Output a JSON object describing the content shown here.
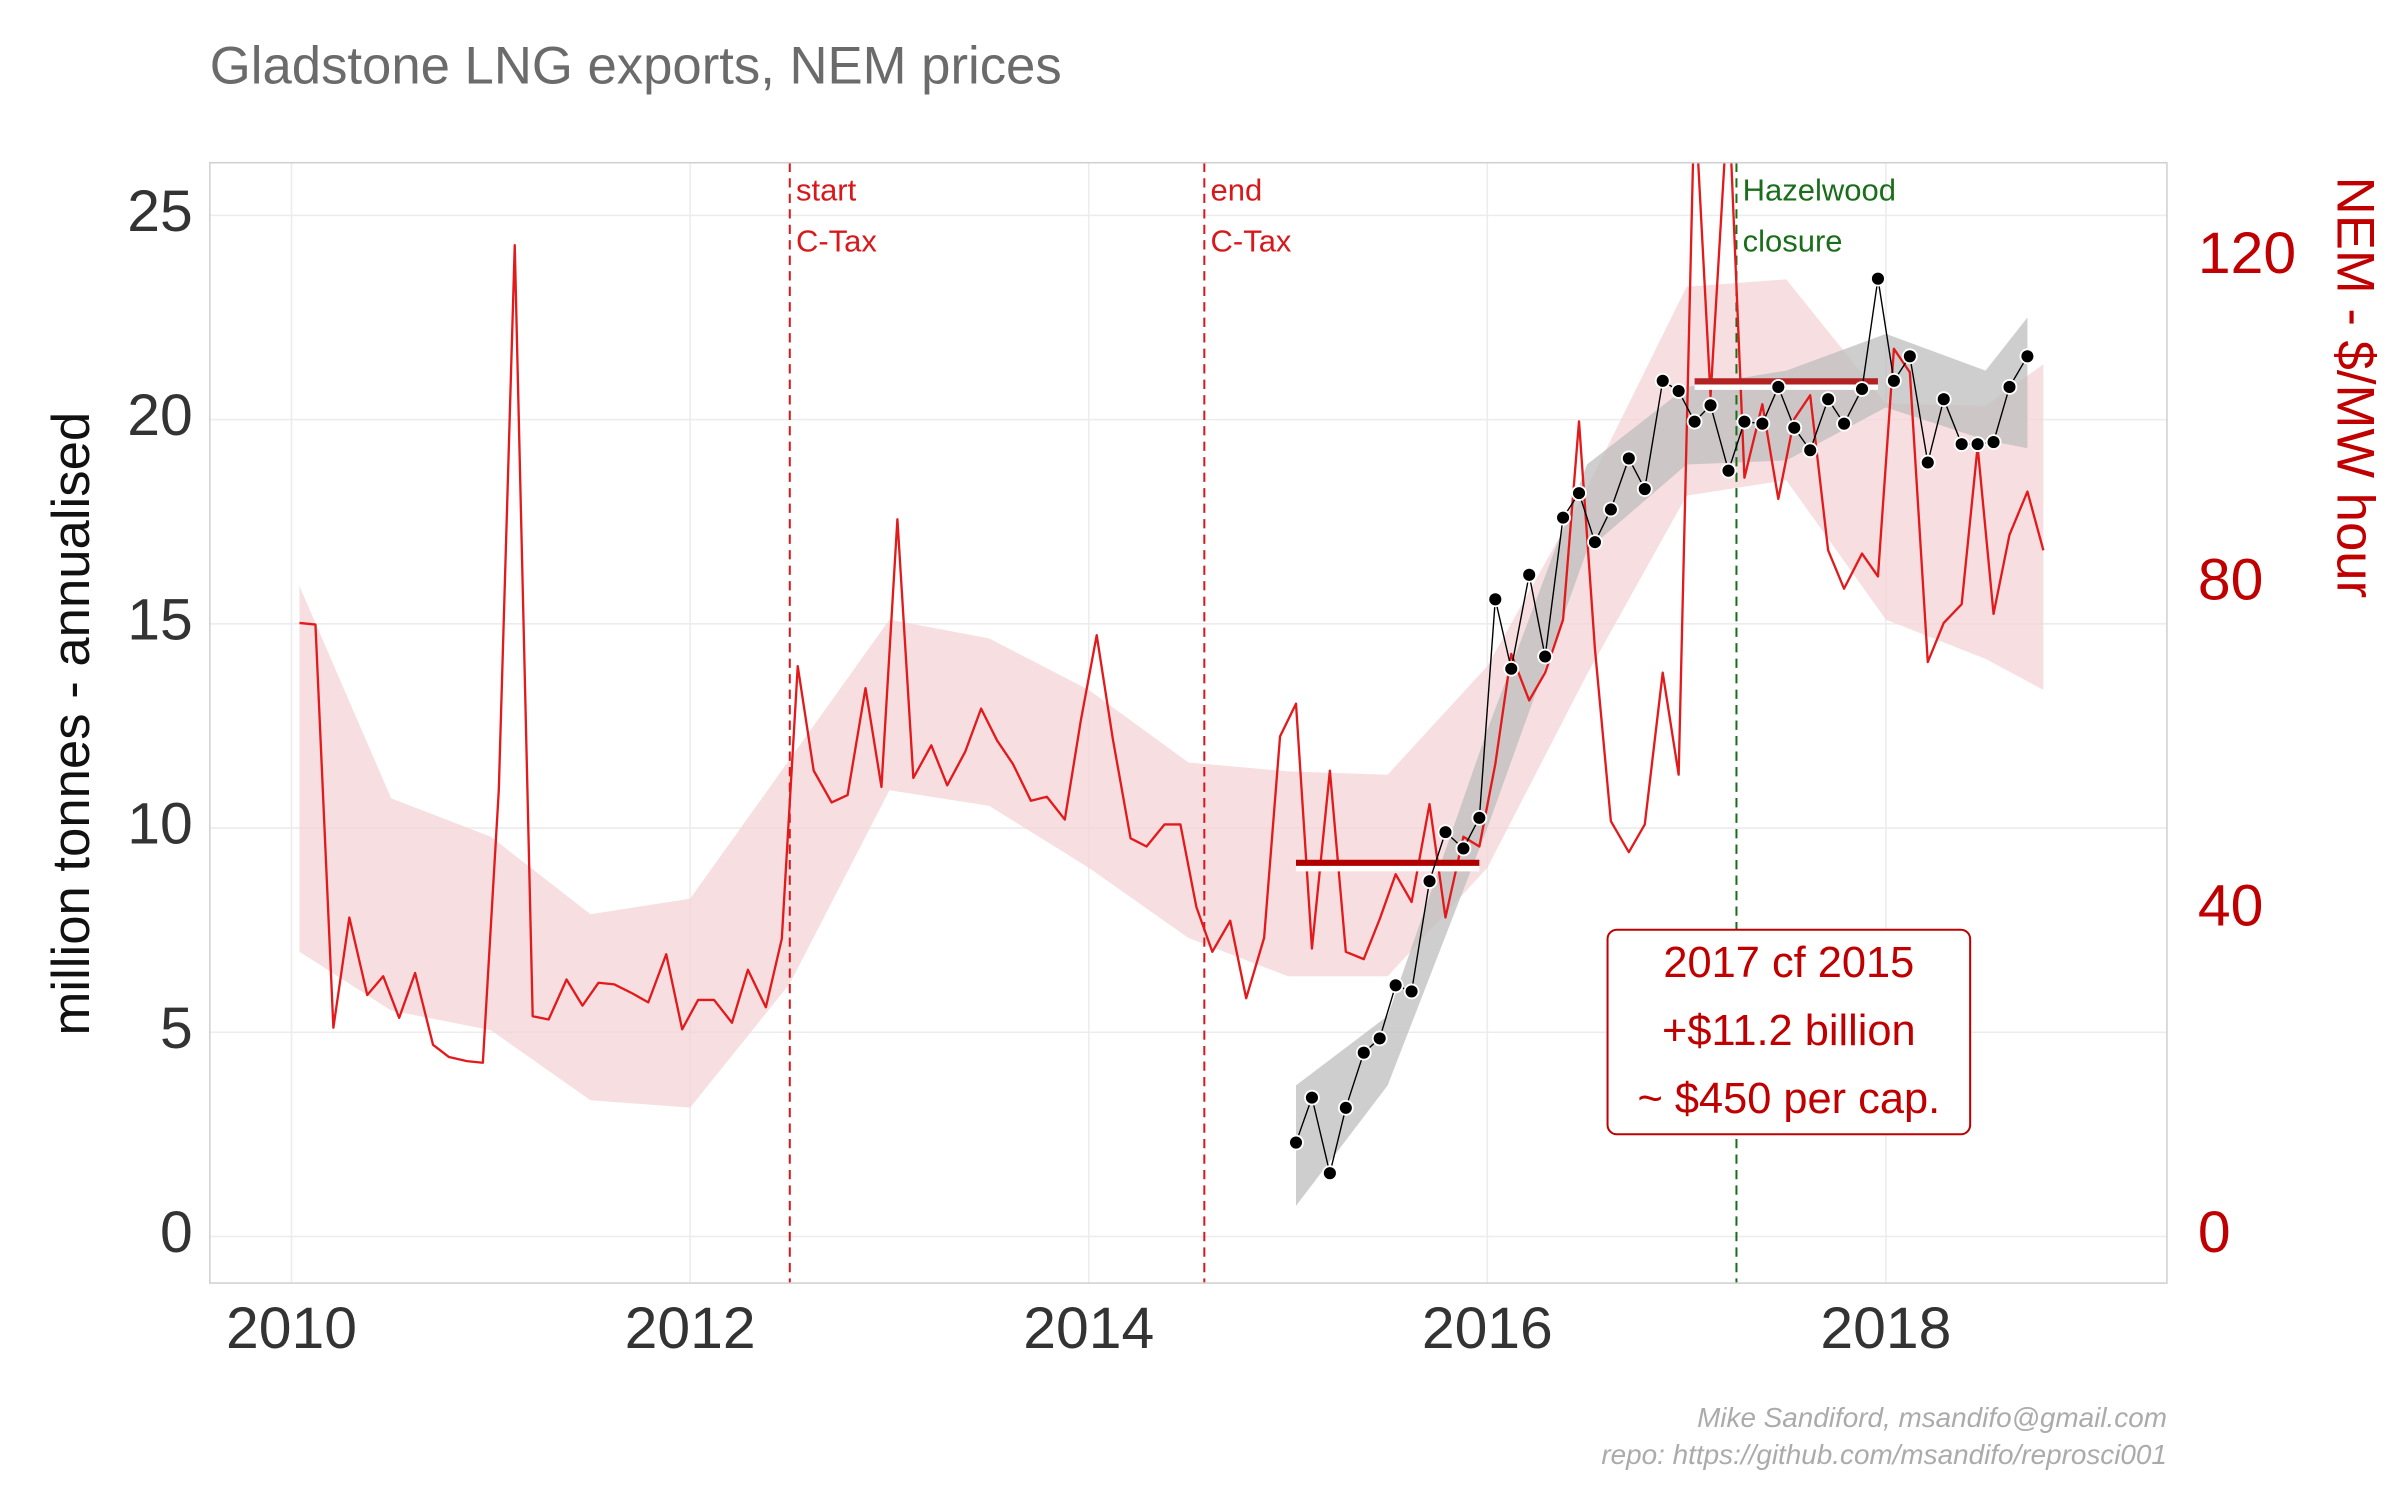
{
  "chart_data": {
    "type": "line",
    "title": "Gladstone LNG exports, NEM prices",
    "ylabel": "million tonnes - annualised",
    "y2label": "NEM - $/MW hour",
    "xlim": [
      2009.59,
      2019.41
    ],
    "xticks": [
      2010,
      2012,
      2014,
      2016,
      2018
    ],
    "ylim": [
      -1.14,
      26.29
    ],
    "yticks": [
      0,
      5,
      10,
      15,
      20,
      25
    ],
    "y2lim": [
      -5.7,
      131.6
    ],
    "y2ticks": [
      0,
      40,
      80,
      120
    ],
    "grid": true,
    "bands": [
      {
        "axis": "y2",
        "color": "#f4d3d6",
        "x": [
          2010.04,
          2010.5,
          2011,
          2011.5,
          2012,
          2012.5,
          2013,
          2013.5,
          2014,
          2014.5,
          2015,
          2015.5,
          2016,
          2016.5,
          2017,
          2017.5,
          2018,
          2018.5,
          2018.79
        ],
        "upper": [
          79.7,
          53.7,
          49,
          39.5,
          41.4,
          58.5,
          75.6,
          73.3,
          67,
          58.1,
          57,
          56.6,
          69.9,
          91.7,
          116.4,
          117.3,
          102.1,
          101.8,
          106.9
        ],
        "lower": [
          34.9,
          27.7,
          25.3,
          16.7,
          15.8,
          31,
          54.7,
          52.8,
          45.2,
          36.6,
          31.9,
          31.9,
          45.2,
          68.9,
          90.8,
          92.7,
          75.6,
          70.8,
          67
        ]
      },
      {
        "axis": "y",
        "color": "#bdbdbd",
        "x": [
          2015.04,
          2015.5,
          2016,
          2016.5,
          2017,
          2017.5,
          2018,
          2018.5,
          2018.71
        ],
        "upper": [
          3.7,
          5.4,
          12.4,
          18.9,
          20.8,
          21.2,
          22.1,
          21.2,
          22.5
        ],
        "lower": [
          0.75,
          3.7,
          10,
          16.8,
          18.9,
          19,
          20.3,
          19.5,
          19.3
        ]
      }
    ],
    "series": [
      {
        "axis": "y2",
        "color": "#e31a1c",
        "x": [
          2010.04,
          2010.12,
          2010.21,
          2010.29,
          2010.38,
          2010.46,
          2010.54,
          2010.62,
          2010.71,
          2010.79,
          2010.88,
          2010.96,
          2011.04,
          2011.12,
          2011.21,
          2011.29,
          2011.38,
          2011.46,
          2011.54,
          2011.62,
          2011.71,
          2011.79,
          2011.88,
          2011.96,
          2012.04,
          2012.12,
          2012.21,
          2012.29,
          2012.38,
          2012.46,
          2012.54,
          2012.62,
          2012.71,
          2012.79,
          2012.88,
          2012.96,
          2013.04,
          2013.12,
          2013.21,
          2013.29,
          2013.38,
          2013.46,
          2013.54,
          2013.62,
          2013.71,
          2013.79,
          2013.88,
          2013.96,
          2014.04,
          2014.12,
          2014.21,
          2014.29,
          2014.38,
          2014.46,
          2014.54,
          2014.62,
          2014.71,
          2014.79,
          2014.88,
          2014.96,
          2015.04,
          2015.12,
          2015.21,
          2015.29,
          2015.38,
          2015.46,
          2015.54,
          2015.62,
          2015.71,
          2015.79,
          2015.88,
          2015.96,
          2016.04,
          2016.12,
          2016.21,
          2016.29,
          2016.38,
          2016.46,
          2016.54,
          2016.62,
          2016.71,
          2016.79,
          2016.88,
          2016.96,
          2017.04,
          2017.12,
          2017.21,
          2017.29,
          2017.38,
          2017.46,
          2017.54,
          2017.62,
          2017.71,
          2017.79,
          2017.88,
          2017.96,
          2018.04,
          2018.12,
          2018.21,
          2018.29,
          2018.38,
          2018.46,
          2018.54,
          2018.62,
          2018.71,
          2018.79
        ],
        "values": [
          75.2,
          75,
          25.6,
          39.1,
          29.6,
          31.9,
          26.8,
          32.3,
          23.5,
          22,
          21.5,
          21.3,
          54.7,
          121.5,
          27,
          26.6,
          31.5,
          28.3,
          31.1,
          30.9,
          29.8,
          28.7,
          34.6,
          25.4,
          29,
          29,
          26.2,
          32.7,
          28.1,
          36.5,
          69.9,
          57.1,
          53.2,
          54.1,
          67.2,
          55.1,
          87.9,
          56.2,
          60.2,
          55.3,
          59.4,
          64.7,
          60.8,
          57.9,
          53.4,
          53.9,
          51.1,
          63.2,
          73.7,
          61.1,
          48.8,
          47.8,
          50.5,
          50.5,
          40.4,
          34.9,
          38.7,
          29.2,
          36.6,
          61.3,
          65.3,
          35.3,
          57.1,
          34.9,
          34,
          38.9,
          44.4,
          41,
          53,
          39.1,
          49,
          47.8,
          57.9,
          71.4,
          65.7,
          69.1,
          75.6,
          99.9,
          72,
          50.9,
          47.1,
          50.5,
          69.1,
          56.6,
          140,
          103,
          140,
          93,
          102,
          90.4,
          100.2,
          103.1,
          84.1,
          79.4,
          83.7,
          80.9,
          108.8,
          105.9,
          70.4,
          75.2,
          77.5,
          96.8,
          76.3,
          86,
          91.3,
          84.1
        ]
      },
      {
        "axis": "y",
        "color": "#000000",
        "markers": true,
        "x": [
          2015.04,
          2015.12,
          2015.21,
          2015.29,
          2015.38,
          2015.46,
          2015.54,
          2015.62,
          2015.71,
          2015.79,
          2015.88,
          2015.96,
          2016.04,
          2016.12,
          2016.21,
          2016.29,
          2016.38,
          2016.46,
          2016.54,
          2016.62,
          2016.71,
          2016.79,
          2016.88,
          2016.96,
          2017.04,
          2017.12,
          2017.21,
          2017.29,
          2017.38,
          2017.46,
          2017.54,
          2017.62,
          2017.71,
          2017.79,
          2017.88,
          2017.96,
          2018.04,
          2018.12,
          2018.21,
          2018.29,
          2018.38,
          2018.46,
          2018.54,
          2018.62,
          2018.71
        ],
        "values": [
          2.3,
          3.4,
          1.55,
          3.15,
          4.5,
          4.85,
          6.15,
          6,
          8.7,
          9.9,
          9.5,
          10.25,
          15.6,
          13.9,
          16.2,
          14.2,
          17.6,
          18.2,
          17,
          17.8,
          19.05,
          18.3,
          20.95,
          20.7,
          19.95,
          20.35,
          18.75,
          19.95,
          19.9,
          20.8,
          19.8,
          19.25,
          20.5,
          19.9,
          20.75,
          23.45,
          20.95,
          21.55,
          18.95,
          20.5,
          19.4,
          19.4,
          19.45,
          20.8,
          21.55
        ]
      }
    ],
    "hlines": [
      {
        "axis": "y2",
        "color": "#b00000",
        "x": [
          2015.04,
          2015.96
        ],
        "value": 45.8
      },
      {
        "axis": "y2",
        "color": "#b22222",
        "x": [
          2017.04,
          2017.96
        ],
        "value": 104.8
      }
    ],
    "vlines": [
      {
        "x": 2012.5,
        "color": "#d7191c",
        "label": [
          "start",
          "C-Tax"
        ]
      },
      {
        "x": 2014.58,
        "color": "#d7191c",
        "label": [
          "end",
          "C-Tax"
        ]
      },
      {
        "x": 2017.25,
        "color": "#1a6e1a",
        "label": [
          "Hazelwood",
          "closure"
        ]
      }
    ],
    "annotation": {
      "color": "#c00000",
      "lines": [
        "2017 cf 2015",
        "+$11.2 billion",
        "~ $450 per cap."
      ]
    },
    "credits": [
      "Mike Sandiford, msandifo@gmail.com",
      "repo: https://github.com/msandifo/reprosci001"
    ]
  }
}
